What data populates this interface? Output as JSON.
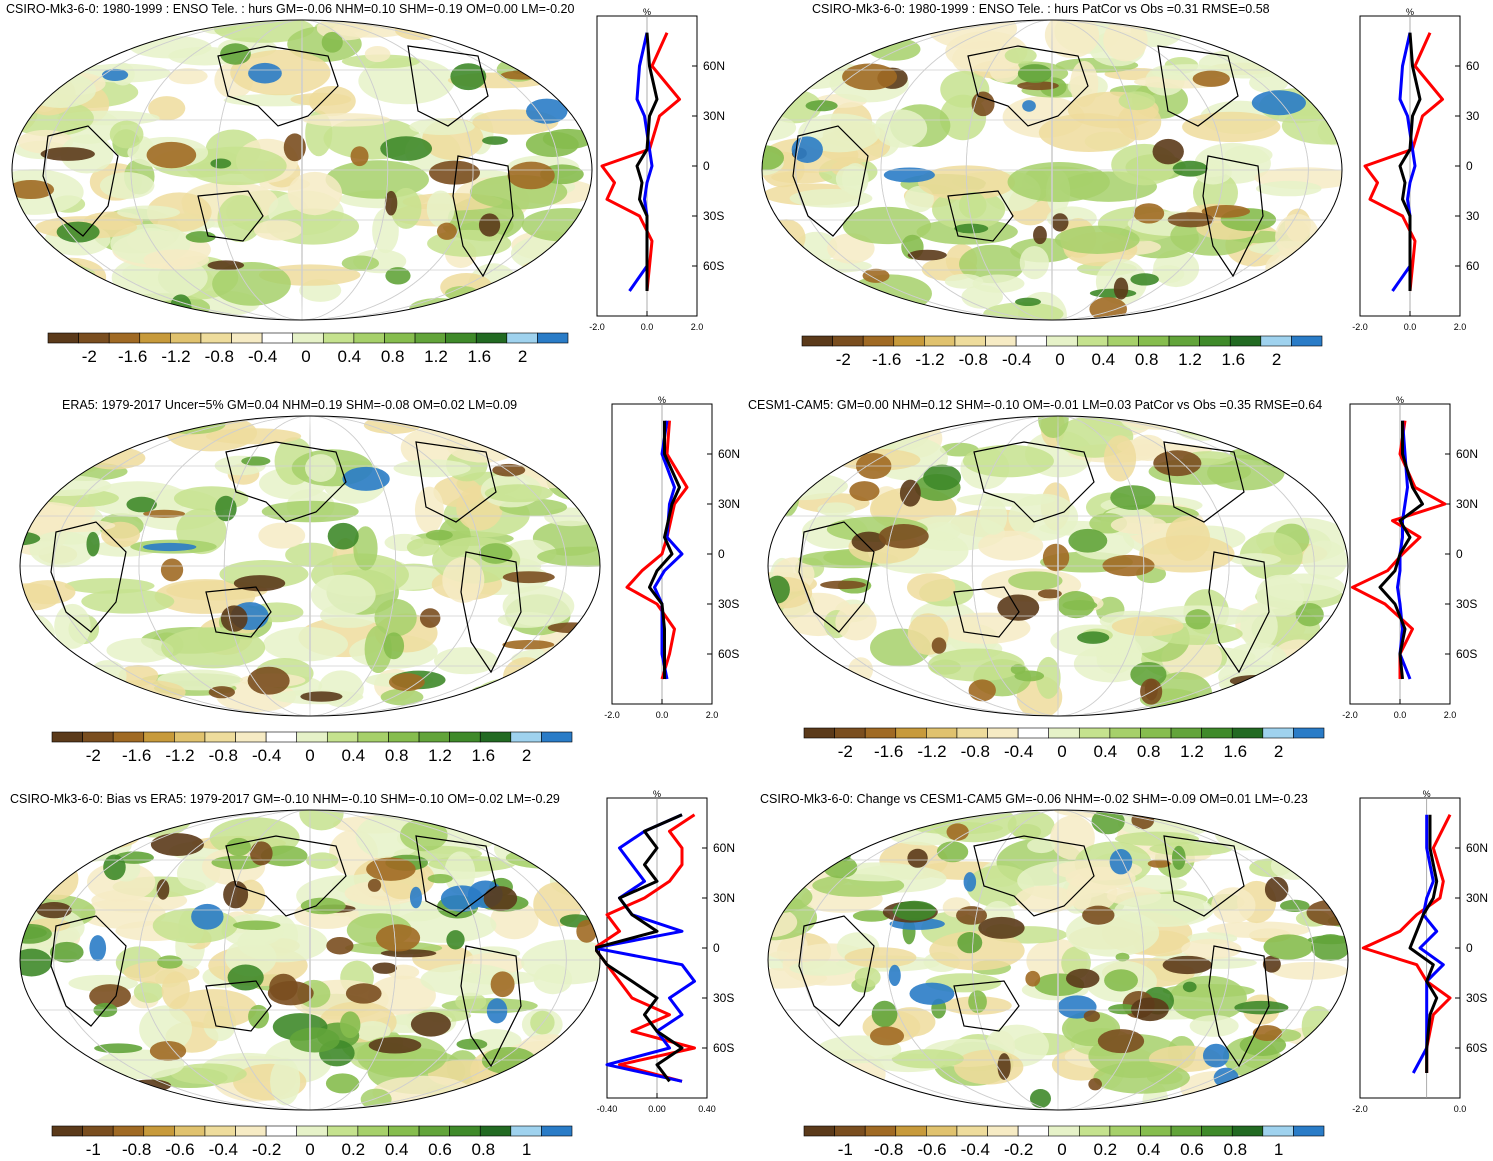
{
  "palette_main": [
    "#5b3a1a",
    "#7a4e1f",
    "#a06a24",
    "#c79a3b",
    "#e0c26e",
    "#eedc9c",
    "#f6ebc4",
    "#ffffff",
    "#e6f2c8",
    "#c5e28e",
    "#a6d06a",
    "#86bd4e",
    "#62a43a",
    "#3f8a2a",
    "#226a22",
    "#9fd2ee",
    "#2a7cc7"
  ],
  "panels": [
    {
      "id": "p1",
      "title": "CSIRO-Mk3-6-0: 1980-1999 : ENSO Tele. : hurs GM=-0.06 NHM=0.10 SHM=-0.19 OM=0.00 LM=-0.20",
      "colorbar_labels": [
        "-2",
        "-1.6",
        "-1.2",
        "-0.8",
        "-0.4",
        "0",
        "0.4",
        "0.8",
        "1.2",
        "1.6",
        "2"
      ],
      "profile": {
        "unit": "%",
        "lat_labels": [
          "60N",
          "30N",
          "0",
          "30S",
          "60S"
        ],
        "x_labels": [
          "-2.0",
          "0.0",
          "2.0"
        ]
      }
    },
    {
      "id": "p2",
      "title": "CSIRO-Mk3-6-0: 1980-1999 : ENSO Tele. : hurs PatCor vs Obs =0.31 RMSE=0.58",
      "colorbar_labels": [
        "-2",
        "-1.6",
        "-1.2",
        "-0.8",
        "-0.4",
        "0",
        "0.4",
        "0.8",
        "1.2",
        "1.6",
        "2"
      ],
      "profile": {
        "unit": "%",
        "lat_labels": [
          "60",
          "30",
          "0",
          "30",
          "60"
        ],
        "x_labels": [
          "-2.0",
          "0.0",
          "2.0"
        ]
      }
    },
    {
      "id": "p3",
      "title": "ERA5: 1979-2017 Uncer=5% GM=0.04 NHM=0.19 SHM=-0.08 OM=0.02 LM=0.09",
      "colorbar_labels": [
        "-2",
        "-1.6",
        "-1.2",
        "-0.8",
        "-0.4",
        "0",
        "0.4",
        "0.8",
        "1.2",
        "1.6",
        "2"
      ],
      "profile": {
        "unit": "%",
        "lat_labels": [
          "60N",
          "30N",
          "0",
          "30S",
          "60S"
        ],
        "x_labels": [
          "-2.0",
          "0.0",
          "2.0"
        ]
      }
    },
    {
      "id": "p4",
      "title": "CESM1-CAM5: GM=0.00 NHM=0.12 SHM=-0.10 OM=-0.01 LM=0.03 PatCor vs Obs =0.35 RMSE=0.64",
      "colorbar_labels": [
        "-2",
        "-1.6",
        "-1.2",
        "-0.8",
        "-0.4",
        "0",
        "0.4",
        "0.8",
        "1.2",
        "1.6",
        "2"
      ],
      "profile": {
        "unit": "%",
        "lat_labels": [
          "60N",
          "30N",
          "0",
          "30S",
          "60S"
        ],
        "x_labels": [
          "-2.0",
          "0.0",
          "2.0"
        ]
      }
    },
    {
      "id": "p5",
      "title": "CSIRO-Mk3-6-0: Bias vs ERA5: 1979-2017 GM=-0.10 NHM=-0.10 SHM=-0.10 OM=-0.02 LM=-0.29",
      "colorbar_labels": [
        "-1",
        "-0.8",
        "-0.6",
        "-0.4",
        "-0.2",
        "0",
        "0.2",
        "0.4",
        "0.6",
        "0.8",
        "1"
      ],
      "profile": {
        "unit": "%",
        "lat_labels": [
          "60N",
          "30N",
          "0",
          "30S",
          "60S"
        ],
        "x_labels": [
          "-0.40",
          "0.00",
          "0.40"
        ]
      }
    },
    {
      "id": "p6",
      "title": "CSIRO-Mk3-6-0: Change vs CESM1-CAM5 GM=-0.06 NHM=-0.02 SHM=-0.09 OM=0.01 LM=-0.23",
      "colorbar_labels": [
        "-1",
        "-0.8",
        "-0.6",
        "-0.4",
        "-0.2",
        "0",
        "0.2",
        "0.4",
        "0.6",
        "0.8",
        "1"
      ],
      "profile": {
        "unit": "%",
        "lat_labels": [
          "60N",
          "30N",
          "0",
          "30S",
          "60S"
        ],
        "x_labels": [
          "-2.0",
          "0.0"
        ]
      }
    }
  ],
  "chart_data": [
    {
      "type": "heatmap",
      "title": "CSIRO-Mk3-6-0: 1980-1999 : ENSO Tele. : hurs GM=-0.06 NHM=0.10 SHM=-0.19 OM=0.00 LM=-0.20",
      "colorbar_range": [
        -2,
        2
      ],
      "profile": {
        "type": "line",
        "x_range": [
          -2,
          2
        ],
        "y_range": [
          -90,
          90
        ],
        "lat": [
          80,
          60,
          40,
          30,
          10,
          0,
          -10,
          -20,
          -30,
          -45,
          -60,
          -75
        ],
        "series": [
          {
            "color": "red",
            "values": [
              0.8,
              0.2,
              1.3,
              0.5,
              0.1,
              -1.8,
              -1.3,
              -1.6,
              -0.3,
              0.2,
              0.1,
              0.0
            ]
          },
          {
            "color": "blue",
            "values": [
              0.0,
              -0.3,
              -0.4,
              -0.1,
              0.1,
              0.2,
              0.0,
              -0.1,
              0.0,
              0.0,
              0.0,
              -0.7
            ]
          },
          {
            "color": "black",
            "values": [
              0.0,
              0.1,
              0.4,
              0.1,
              0.0,
              -0.4,
              -0.2,
              -0.3,
              0.0,
              0.0,
              0.0,
              0.0
            ]
          }
        ]
      }
    },
    {
      "type": "heatmap",
      "title": "CSIRO-Mk3-6-0: 1980-1999 : ENSO Tele. : hurs PatCor vs Obs =0.31 RMSE=0.58",
      "colorbar_range": [
        -2,
        2
      ],
      "profile": {
        "type": "line",
        "x_range": [
          -2,
          2
        ],
        "y_range": [
          -90,
          90
        ],
        "lat": [
          80,
          60,
          40,
          30,
          10,
          0,
          -10,
          -20,
          -30,
          -45,
          -60,
          -75
        ],
        "series": [
          {
            "color": "red",
            "values": [
              0.8,
              0.2,
              1.3,
              0.5,
              0.1,
              -1.8,
              -1.3,
              -1.6,
              -0.3,
              0.2,
              0.1,
              0.0
            ]
          },
          {
            "color": "blue",
            "values": [
              0.0,
              -0.3,
              -0.4,
              -0.1,
              0.1,
              0.2,
              0.0,
              -0.1,
              0.0,
              0.0,
              0.0,
              -0.7
            ]
          },
          {
            "color": "black",
            "values": [
              0.0,
              0.1,
              0.4,
              0.1,
              0.0,
              -0.4,
              -0.2,
              -0.3,
              0.0,
              0.0,
              0.0,
              0.0
            ]
          }
        ]
      }
    },
    {
      "type": "heatmap",
      "title": "ERA5: 1979-2017 Uncer=5% GM=0.04 NHM=0.19 SHM=-0.08 OM=0.02 LM=0.09",
      "colorbar_range": [
        -2,
        2
      ],
      "profile": {
        "type": "line",
        "x_range": [
          -2,
          2
        ],
        "y_range": [
          -90,
          90
        ],
        "lat": [
          80,
          60,
          40,
          30,
          10,
          0,
          -10,
          -20,
          -30,
          -45,
          -60,
          -75
        ],
        "series": [
          {
            "color": "red",
            "values": [
              0.3,
              0.2,
              1.0,
              0.5,
              0.2,
              0.0,
              -0.8,
              -1.4,
              -0.2,
              0.5,
              0.3,
              0.0
            ]
          },
          {
            "color": "blue",
            "values": [
              0.2,
              0.0,
              0.5,
              0.3,
              0.2,
              0.8,
              0.1,
              -0.3,
              0.0,
              0.0,
              0.0,
              0.2
            ]
          },
          {
            "color": "black",
            "values": [
              0.1,
              0.1,
              0.7,
              0.4,
              0.1,
              0.4,
              -0.2,
              -0.5,
              0.0,
              0.1,
              0.1,
              0.1
            ]
          }
        ]
      }
    },
    {
      "type": "heatmap",
      "title": "CESM1-CAM5: GM=0.00 NHM=0.12 SHM=-0.10 OM=-0.01 LM=0.03 PatCor vs Obs =0.35 RMSE=0.64",
      "colorbar_range": [
        -2,
        2
      ],
      "profile": {
        "type": "line",
        "x_range": [
          -2,
          2
        ],
        "y_range": [
          -90,
          90
        ],
        "lat": [
          80,
          60,
          40,
          30,
          20,
          10,
          0,
          -10,
          -20,
          -30,
          -45,
          -60,
          -75
        ],
        "series": [
          {
            "color": "red",
            "values": [
              0.2,
              0.0,
              0.6,
              1.8,
              -0.3,
              0.8,
              0.1,
              -0.5,
              -1.9,
              -0.6,
              0.5,
              0.0,
              0.0
            ]
          },
          {
            "color": "blue",
            "values": [
              0.1,
              0.2,
              0.3,
              0.2,
              0.1,
              0.1,
              0.0,
              0.0,
              -0.1,
              0.0,
              0.1,
              0.0,
              0.4
            ]
          },
          {
            "color": "black",
            "values": [
              0.1,
              0.1,
              0.5,
              0.9,
              0.0,
              0.4,
              0.0,
              -0.2,
              -0.8,
              -0.2,
              0.2,
              0.0,
              0.1
            ]
          }
        ]
      }
    },
    {
      "type": "heatmap",
      "title": "CSIRO-Mk3-6-0: Bias vs ERA5: 1979-2017 GM=-0.10 NHM=-0.10 SHM=-0.10 OM=-0.02 LM=-0.29",
      "colorbar_range": [
        -1,
        1
      ],
      "profile": {
        "type": "line",
        "x_range": [
          -0.4,
          0.4
        ],
        "y_range": [
          -90,
          90
        ],
        "lat": [
          80,
          70,
          60,
          50,
          40,
          30,
          20,
          10,
          0,
          -10,
          -20,
          -30,
          -40,
          -50,
          -60,
          -70,
          -80
        ],
        "series": [
          {
            "color": "red",
            "values": [
              0.3,
              0.1,
              0.2,
              0.2,
              0.1,
              -0.1,
              -0.4,
              -0.3,
              -0.5,
              -0.4,
              -0.3,
              -0.2,
              0.1,
              -0.2,
              0.3,
              -0.3,
              0.2
            ]
          },
          {
            "color": "blue",
            "values": [
              0.2,
              -0.1,
              -0.3,
              -0.2,
              -0.1,
              -0.3,
              -0.2,
              0.2,
              -0.5,
              0.2,
              0.3,
              0.1,
              0.2,
              0.0,
              0.1,
              -0.4,
              0.2
            ]
          },
          {
            "color": "black",
            "values": [
              0.2,
              -0.1,
              0.0,
              -0.1,
              0.0,
              -0.3,
              -0.2,
              0.0,
              -0.5,
              -0.4,
              -0.2,
              0.0,
              -0.1,
              0.0,
              0.2,
              0.0,
              0.1
            ]
          }
        ]
      }
    },
    {
      "type": "heatmap",
      "title": "CSIRO-Mk3-6-0: Change vs CESM1-CAM5 GM=-0.06 NHM=-0.02 SHM=-0.09 OM=0.01 LM=-0.23",
      "colorbar_range": [
        -1,
        1
      ],
      "profile": {
        "type": "line",
        "x_range": [
          -2,
          1
        ],
        "y_range": [
          -90,
          90
        ],
        "lat": [
          80,
          60,
          40,
          30,
          20,
          10,
          0,
          -10,
          -20,
          -30,
          -40,
          -60,
          -75
        ],
        "series": [
          {
            "color": "red",
            "values": [
              0.7,
              0.2,
              0.5,
              0.4,
              -0.3,
              -0.8,
              -1.9,
              -0.3,
              0.0,
              0.7,
              0.2,
              0.0,
              0.0
            ]
          },
          {
            "color": "blue",
            "values": [
              0.0,
              0.0,
              0.2,
              0.0,
              -0.1,
              0.3,
              -0.2,
              0.5,
              0.0,
              0.0,
              0.0,
              0.0,
              -0.4
            ]
          },
          {
            "color": "black",
            "values": [
              0.1,
              0.1,
              0.3,
              0.2,
              -0.1,
              -0.3,
              -0.5,
              0.2,
              0.0,
              0.3,
              0.1,
              0.0,
              0.0
            ]
          }
        ]
      }
    }
  ]
}
